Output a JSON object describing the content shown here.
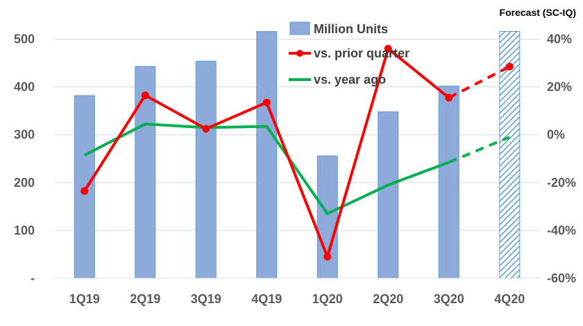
{
  "chart_data": {
    "type": "bar",
    "categories": [
      "1Q19",
      "2Q19",
      "3Q19",
      "4Q19",
      "1Q20",
      "2Q20",
      "3Q20",
      "4Q20"
    ],
    "y_left": {
      "ticks": [
        "-",
        "100",
        "200",
        "300",
        "400",
        "500"
      ],
      "lim": [
        0,
        550
      ]
    },
    "y_right": {
      "ticks": [
        "-60%",
        "-40%",
        "-20%",
        "0%",
        "20%",
        "40%"
      ],
      "lim": [
        -60,
        50
      ]
    },
    "series": [
      {
        "name": "Million Units",
        "type": "bar",
        "axis": "left",
        "values": [
          382,
          443,
          454,
          516,
          256,
          348,
          402,
          516
        ],
        "forecast_from_index": 7
      },
      {
        "name": "vs. prior quarter",
        "type": "line",
        "axis": "right",
        "values": [
          -23.5,
          16.5,
          2.5,
          13.5,
          -51,
          36,
          15.5,
          28.5
        ],
        "forecast_from_index": 6
      },
      {
        "name": "vs. year ago",
        "type": "line",
        "axis": "right",
        "values": [
          -8.5,
          4.5,
          3,
          3.5,
          -33,
          -21,
          -11.5,
          -1
        ],
        "forecast_from_index": 6
      }
    ],
    "annotation": "Forecast (SC-IQ)",
    "colors": {
      "bar": "#8eaadb",
      "bar_edge": "#5b9bd5",
      "prior": "#ff0000",
      "yoy": "#00b050",
      "grid": "#d9d9d9",
      "tick": "#595959"
    },
    "grid": true,
    "legend_position": "top-center"
  }
}
